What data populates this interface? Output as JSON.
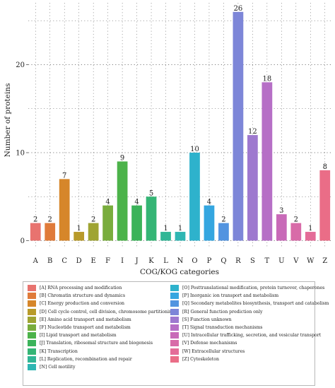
{
  "chart_data": {
    "type": "bar",
    "xlabel": "COG/KOG categories",
    "ylabel": "Number of proteins",
    "ylim": [
      0,
      27
    ],
    "yticks": [
      0,
      10,
      20
    ],
    "grid": true,
    "legend_placement": "bottom",
    "categories": [
      "A",
      "B",
      "C",
      "D",
      "E",
      "F",
      "I",
      "J",
      "K",
      "L",
      "N",
      "O",
      "P",
      "Q",
      "R",
      "S",
      "T",
      "U",
      "V",
      "W",
      "Z"
    ],
    "values": [
      2,
      2,
      7,
      1,
      2,
      4,
      9,
      4,
      5,
      1,
      1,
      10,
      4,
      2,
      26,
      12,
      18,
      3,
      2,
      1,
      8
    ],
    "colors": [
      "#e8736f",
      "#e07b3a",
      "#d6862a",
      "#b89a2a",
      "#9fa433",
      "#79ad3d",
      "#4cb34a",
      "#3bb35a",
      "#35b575",
      "#31b695",
      "#2fb6b3",
      "#2eb2cc",
      "#34a6e0",
      "#5294e0",
      "#7d86d8",
      "#9e79cf",
      "#b66fc6",
      "#c86ab8",
      "#d86ba8",
      "#e46c98",
      "#ea6d87"
    ],
    "legend": {
      "left": [
        {
          "label": "[A] RNA processing and modification",
          "color": "#e8736f"
        },
        {
          "label": "[B] Chromatin structure and dynamics",
          "color": "#e07b3a"
        },
        {
          "label": "[C] Energy production and conversion",
          "color": "#d6862a"
        },
        {
          "label": "[D] Cell cycle control, cell division, chromosome partitioning",
          "color": "#b89a2a"
        },
        {
          "label": "[E] Amino acid transport and metabolism",
          "color": "#9fa433"
        },
        {
          "label": "[F] Nucleotide transport and metabolism",
          "color": "#79ad3d"
        },
        {
          "label": "[I] Lipid transport and metabolism",
          "color": "#4cb34a"
        },
        {
          "label": "[J] Translation, ribosomal structure and biogenesis",
          "color": "#3bb35a"
        },
        {
          "label": "[K] Transcription",
          "color": "#35b575"
        },
        {
          "label": "[L] Replication, recombination and repair",
          "color": "#31b695"
        },
        {
          "label": "[N] Cell motility",
          "color": "#2fb6b3"
        }
      ],
      "right": [
        {
          "label": "[O] Posttranslational modification, protein turnover, chaperones",
          "color": "#2eb2cc"
        },
        {
          "label": "[P] Inorganic ion transport and metabolism",
          "color": "#34a6e0"
        },
        {
          "label": "[Q] Secondary metabolites biosynthesis, transport and catabolism",
          "color": "#5294e0"
        },
        {
          "label": "[R] General function prediction only",
          "color": "#7d86d8"
        },
        {
          "label": "[S] Function unknown",
          "color": "#9e79cf"
        },
        {
          "label": "[T] Signal transduction mechanisms",
          "color": "#b66fc6"
        },
        {
          "label": "[U] Intracellular trafficking, secretion, and vesicular transport",
          "color": "#c86ab8"
        },
        {
          "label": "[V] Defense mechanisms",
          "color": "#d86ba8"
        },
        {
          "label": "[W] Extracellular structures",
          "color": "#e46c98"
        },
        {
          "label": "[Z] Cytoskeleton",
          "color": "#ea6d87"
        }
      ]
    }
  }
}
